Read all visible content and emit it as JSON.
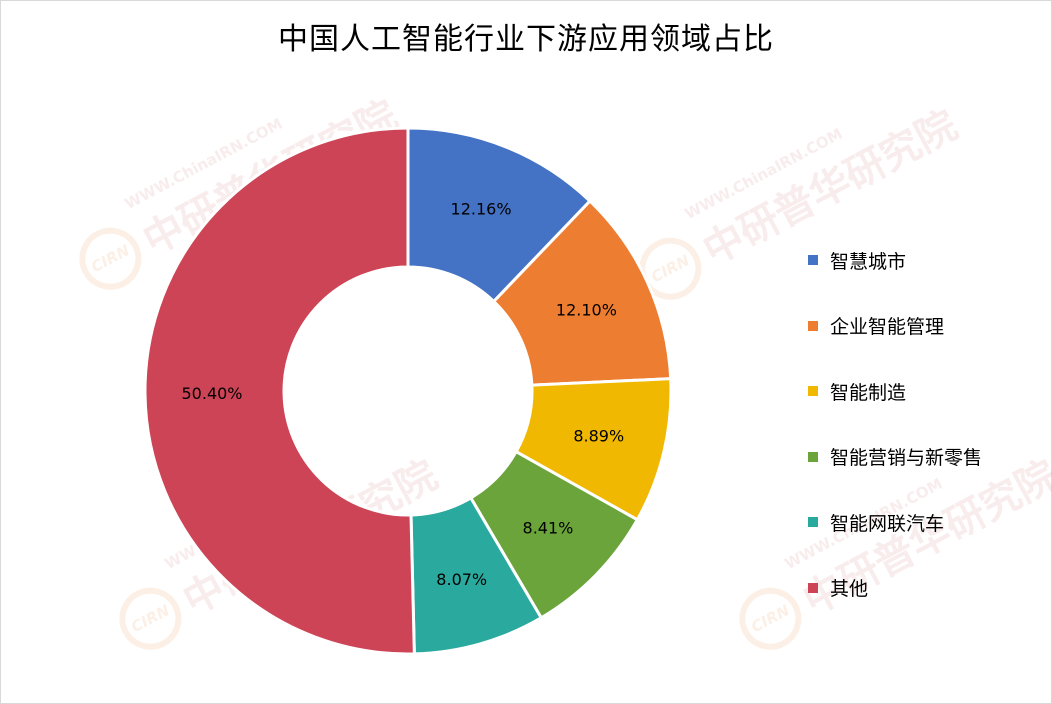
{
  "watermark": {
    "url": "WWW.ChinaIRN.COM",
    "logo": "CIRN",
    "name": "中研普华研究院"
  },
  "chart_data": {
    "type": "pie",
    "variant": "donut",
    "title": "中国人工智能行业下游应用领域占比",
    "legend_position": "right",
    "categories": [
      "智慧城市",
      "企业智能管理",
      "智能制造",
      "智能营销与新零售",
      "智能网联汽车",
      "其他"
    ],
    "values": [
      12.16,
      12.1,
      8.89,
      8.41,
      8.07,
      50.4
    ],
    "labels": [
      "12.16%",
      "12.10%",
      "8.89%",
      "8.41%",
      "8.07%",
      "50.40%"
    ],
    "colors": [
      "#4472c4",
      "#ed7d31",
      "#f0b800",
      "#6aa43b",
      "#2aaa9e",
      "#cc4455"
    ]
  }
}
